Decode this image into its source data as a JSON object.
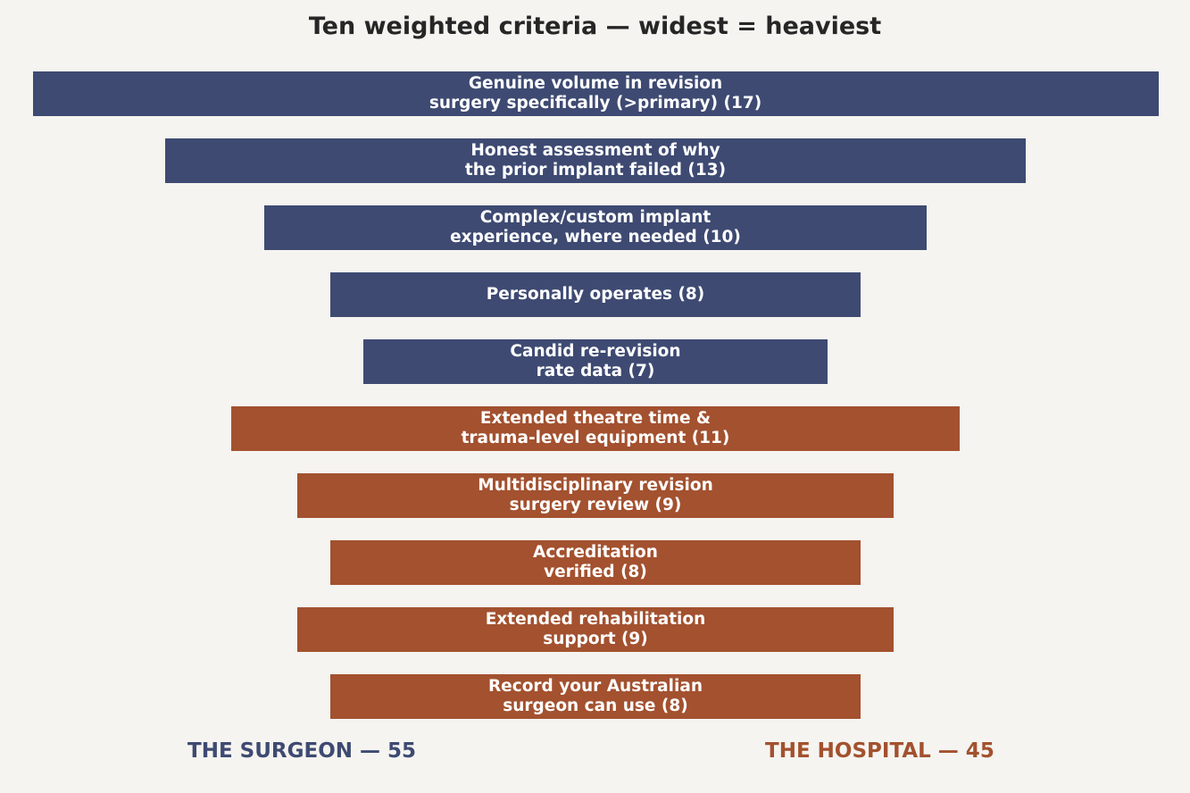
{
  "chart_data": {
    "type": "bar",
    "orientation": "horizontal-centered",
    "title": "Ten weighted criteria — widest = heaviest",
    "categories": [
      "Genuine volume in revision\nsurgery specifically (>primary)",
      "Honest assessment of why\nthe prior implant failed",
      "Complex/custom implant\nexperience, where needed",
      "Personally operates",
      "Candid re-revision\nrate data",
      "Extended theatre time &\ntrauma-level equipment",
      "Multidisciplinary revision\nsurgery review",
      "Accreditation\nverified",
      "Extended rehabilitation\nsupport",
      "Record your Australian\nsurgeon can use"
    ],
    "values": [
      17,
      13,
      10,
      8,
      7,
      11,
      9,
      8,
      9,
      8
    ],
    "groups": [
      "surgeon",
      "surgeon",
      "surgeon",
      "surgeon",
      "surgeon",
      "hospital",
      "hospital",
      "hospital",
      "hospital",
      "hospital"
    ],
    "xlim": [
      0,
      17
    ],
    "grid": false,
    "colors": {
      "surgeon": "#3e4a72",
      "hospital": "#a3512f"
    }
  },
  "footer": {
    "surgeon_total": "THE SURGEON — 55",
    "hospital_total": "THE HOSPITAL — 45"
  }
}
